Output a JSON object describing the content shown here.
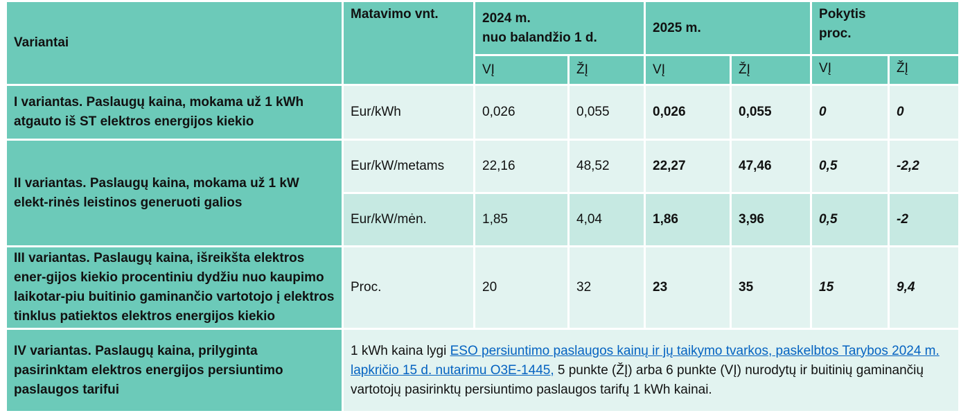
{
  "header": {
    "variants": "Variantai",
    "unit": "Matavimo vnt.",
    "y2024_line1": "2024 m.",
    "y2024_line2": "nuo balandžio 1 d.",
    "y2025": "2025 m.",
    "change_line1": "Pokytis",
    "change_line2": "proc.",
    "vi": "VĮ",
    "zi": "ŽĮ"
  },
  "rows": [
    {
      "variant": "I variantas. Paslaugų kaina, mokama už 1 kWh atgauto iš ST elektros energijos kiekio",
      "unit": "Eur/kWh",
      "v2024_vi": "0,026",
      "v2024_zi": "0,055",
      "v2025_vi": "0,026",
      "v2025_zi": "0,055",
      "chg_vi": "0",
      "chg_zi": "0"
    },
    {
      "variant": "II variantas. Paslaugų kaina, mokama už 1 kW elekt-rinės leistinos generuoti galios",
      "unit": "Eur/kW/metams",
      "v2024_vi": "22,16",
      "v2024_zi": "48,52",
      "v2025_vi": "22,27",
      "v2025_zi": "47,46",
      "chg_vi": "0,5",
      "chg_zi": "-2,2"
    },
    {
      "unit": "Eur/kW/mėn.",
      "v2024_vi": "1,85",
      "v2024_zi": "4,04",
      "v2025_vi": "1,86",
      "v2025_zi": "3,96",
      "chg_vi": "0,5",
      "chg_zi": "-2"
    },
    {
      "variant": "III variantas. Paslaugų kaina, išreikšta elektros ener-gijos kiekio procentiniu dydžiu nuo kaupimo laikotar-piu buitinio gaminančio vartotojo į elektros tinklus patiektos elektros energijos kiekio",
      "unit": "Proc.",
      "v2024_vi": "20",
      "v2024_zi": "32",
      "v2025_vi": "23",
      "v2025_zi": "35",
      "chg_vi": "15",
      "chg_zi": "9,4"
    },
    {
      "variant": "IV variantas. Paslaugų kaina, prilyginta pasirinktam elektros energijos persiuntimo paslaugos tarifui",
      "text_before": "1 kWh kaina lygi ",
      "link_text": "ESO persiuntimo paslaugos kainų ir jų taikymo tvarkos, paskelbtos Tarybos 2024 m. lapkričio 15 d. nutarimu O3E-1445,",
      "text_after": " 5 punkte (ŽĮ) arba 6 punkte (VĮ) nurodytų ir buitinių gaminančių vartotojų pasirinktų persiuntimo paslaugos tarifų 1 kWh kainai."
    }
  ],
  "colors": {
    "header": "#6ccab9",
    "light_cell": "#e2f3f0",
    "medium_cell": "#c6e9e2",
    "link": "#0563c1"
  }
}
